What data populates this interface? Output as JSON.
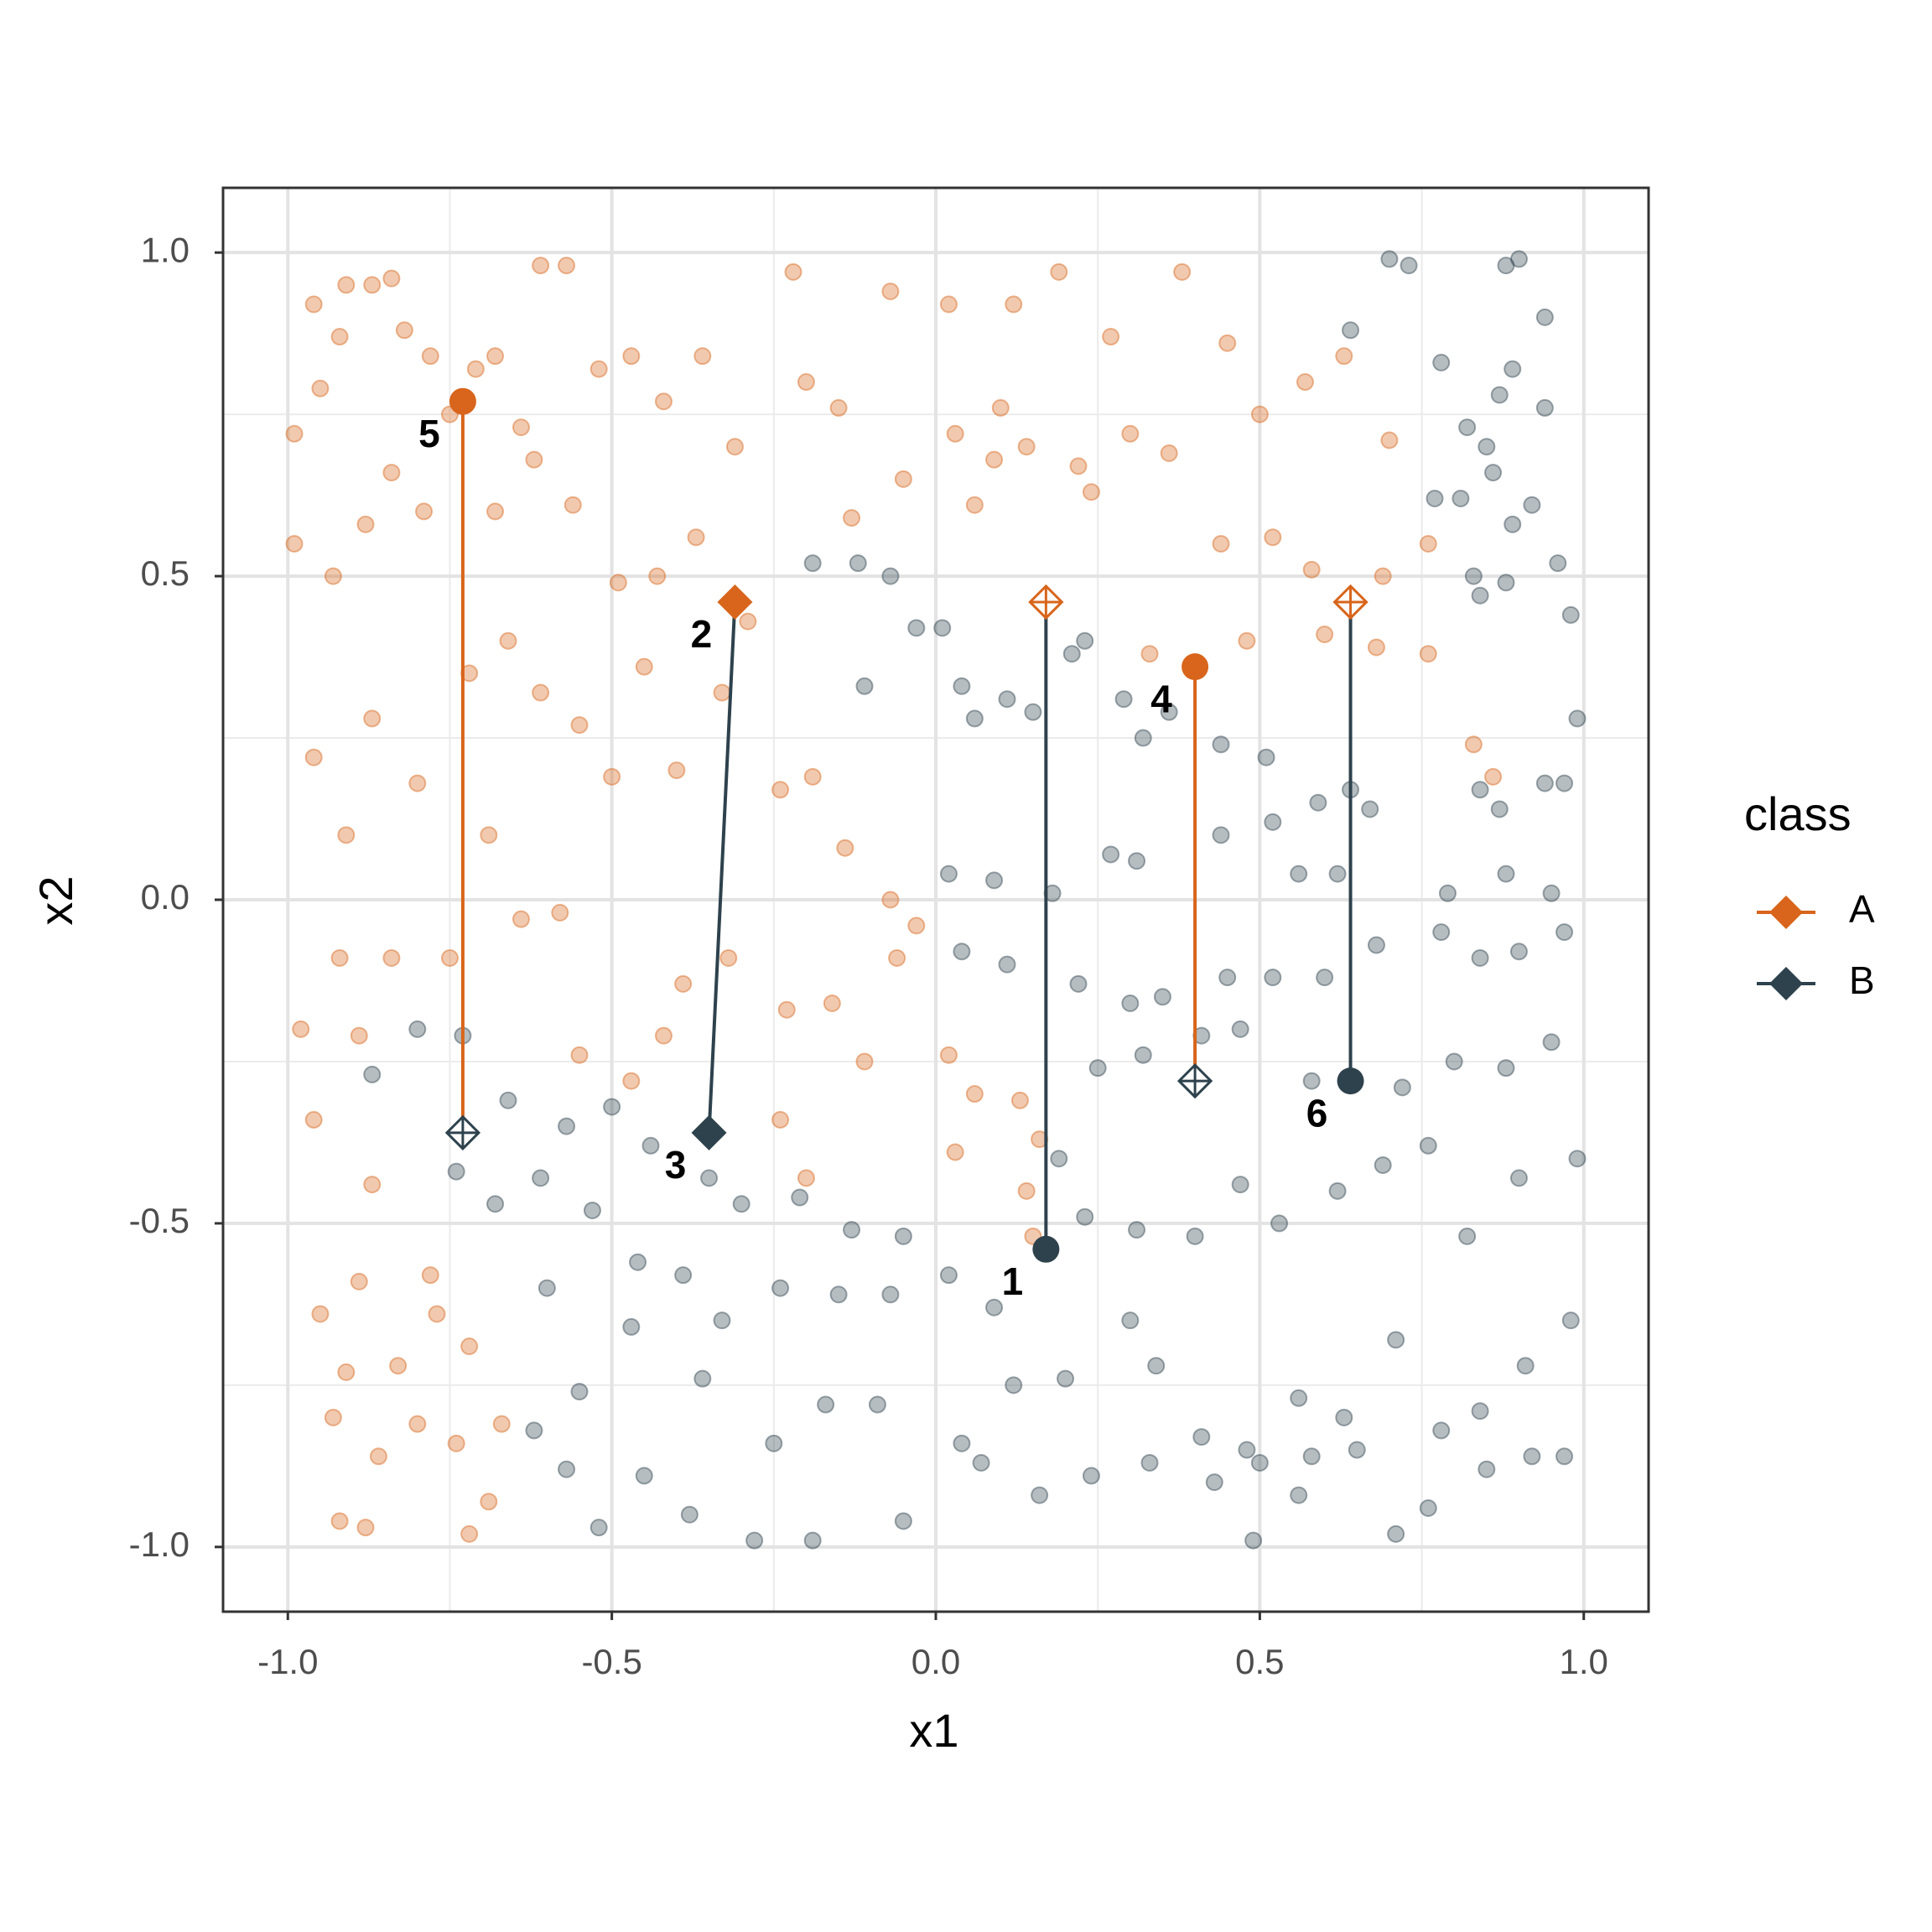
{
  "chart_data": {
    "type": "scatter",
    "x_label": "x1",
    "y_label": "x2",
    "legend_title": "class",
    "legend_position": "right",
    "grid": true,
    "xlim": [
      -1.1,
      1.1
    ],
    "ylim": [
      -1.1,
      1.1
    ],
    "xticks": [
      {
        "value": -1,
        "label": "-1.0"
      },
      {
        "value": -0.5,
        "label": "-0.5"
      },
      {
        "value": 0,
        "label": "0.0"
      },
      {
        "value": 0.5,
        "label": "0.5"
      },
      {
        "value": 1,
        "label": "1.0"
      }
    ],
    "yticks": [
      {
        "value": -1,
        "label": "-1.0"
      },
      {
        "value": -0.5,
        "label": "-0.5"
      },
      {
        "value": 0,
        "label": "0.0"
      },
      {
        "value": 0.5,
        "label": "0.5"
      },
      {
        "value": 1,
        "label": "1.0"
      }
    ],
    "minor_xticks": [
      -0.75,
      -0.25,
      0.25,
      0.75
    ],
    "minor_yticks": [
      -0.75,
      -0.25,
      0.25,
      0.75
    ],
    "series": [
      {
        "name": "A",
        "color": "#d8651b",
        "x": [
          -0.99,
          -0.99,
          -0.96,
          -0.95,
          -0.92,
          -0.91,
          -0.87,
          -0.84,
          -0.82,
          -0.78,
          -0.75,
          -0.71,
          -0.68,
          -0.64,
          -0.61,
          -0.57,
          -0.52,
          -0.47,
          -0.42,
          -0.36,
          -0.31,
          -0.22,
          -0.15,
          -0.07,
          0.02,
          0.12,
          0.19,
          0.27,
          0.38,
          0.45,
          0.5,
          0.57,
          0.63,
          0.7,
          -0.93,
          -0.88,
          -0.84,
          -0.79,
          -0.68,
          -0.62,
          -0.56,
          -0.49,
          -0.43,
          -0.37,
          -0.29,
          -0.2,
          -0.13,
          -0.05,
          0.03,
          0.09,
          0.14,
          0.22,
          0.3,
          0.36,
          0.44,
          0.52,
          0.58,
          0.69,
          0.76,
          -0.96,
          -0.91,
          -0.87,
          -0.8,
          -0.72,
          -0.66,
          -0.61,
          -0.55,
          -0.5,
          -0.45,
          -0.4,
          -0.33,
          -0.24,
          -0.19,
          -0.14,
          -0.07,
          -0.03,
          0.06,
          0.1,
          0.24,
          0.33,
          0.48,
          0.6,
          0.68,
          0.76,
          0.83,
          0.86,
          -0.98,
          -0.92,
          -0.89,
          -0.84,
          -0.75,
          -0.69,
          -0.64,
          -0.58,
          -0.55,
          -0.47,
          -0.42,
          -0.39,
          -0.32,
          -0.23,
          -0.16,
          -0.11,
          -0.06,
          0.02,
          0.06,
          0.13,
          0.16,
          0.14,
          0.15,
          -0.96,
          -0.95,
          -0.93,
          -0.91,
          -0.89,
          -0.87,
          -0.86,
          -0.83,
          -0.8,
          -0.77,
          -0.74,
          -0.72,
          -0.69,
          -0.67,
          -0.92,
          -0.88,
          -0.72,
          -0.78,
          -0.2,
          -0.24,
          0.03
        ],
        "values": [
          0.55,
          0.72,
          0.92,
          0.79,
          0.87,
          0.95,
          0.95,
          0.96,
          0.88,
          0.84,
          0.75,
          0.82,
          0.84,
          0.73,
          0.98,
          0.98,
          0.82,
          0.84,
          0.77,
          0.84,
          0.7,
          0.97,
          0.76,
          0.94,
          0.92,
          0.92,
          0.97,
          0.87,
          0.97,
          0.86,
          0.75,
          0.8,
          0.84,
          0.71,
          0.5,
          0.58,
          0.66,
          0.6,
          0.6,
          0.68,
          0.61,
          0.49,
          0.5,
          0.56,
          0.43,
          0.8,
          0.59,
          0.65,
          0.72,
          0.68,
          0.7,
          0.67,
          0.72,
          0.69,
          0.55,
          0.56,
          0.51,
          0.5,
          0.55,
          0.22,
          0.1,
          0.28,
          0.18,
          0.35,
          0.4,
          0.32,
          0.27,
          0.19,
          0.36,
          0.2,
          0.32,
          0.17,
          0.19,
          0.08,
          0.0,
          -0.04,
          0.61,
          0.76,
          0.63,
          0.38,
          0.4,
          0.41,
          0.39,
          0.38,
          0.24,
          0.19,
          -0.2,
          -0.09,
          -0.21,
          -0.09,
          -0.09,
          0.1,
          -0.03,
          -0.02,
          -0.24,
          -0.28,
          -0.21,
          -0.13,
          -0.09,
          -0.17,
          -0.16,
          -0.25,
          -0.09,
          -0.24,
          -0.3,
          -0.31,
          -0.37,
          -0.45,
          -0.52,
          -0.34,
          -0.64,
          -0.8,
          -0.73,
          -0.59,
          -0.44,
          -0.86,
          -0.72,
          -0.81,
          -0.64,
          -0.84,
          -0.69,
          -0.93,
          -0.81,
          -0.96,
          -0.97,
          -0.98,
          -0.58,
          -0.43,
          -0.34,
          -0.39
        ]
      },
      {
        "name": "B",
        "color": "#2e424d",
        "x": [
          0.7,
          0.73,
          0.88,
          0.9,
          0.64,
          0.78,
          0.89,
          0.94,
          0.94,
          0.87,
          0.82,
          0.85,
          0.86,
          0.77,
          0.81,
          0.89,
          0.92,
          0.96,
          0.98,
          0.83,
          0.88,
          0.84,
          -0.19,
          -0.12,
          -0.07,
          -0.11,
          -0.03,
          0.01,
          0.04,
          0.06,
          0.11,
          0.15,
          0.21,
          0.23,
          0.29,
          0.32,
          0.36,
          0.44,
          0.51,
          0.59,
          0.64,
          0.67,
          0.84,
          0.87,
          0.94,
          0.97,
          0.99,
          0.02,
          0.09,
          0.18,
          0.27,
          0.31,
          0.44,
          0.52,
          0.56,
          0.62,
          0.79,
          0.88,
          0.95,
          0.04,
          0.11,
          0.22,
          0.3,
          0.35,
          0.45,
          0.52,
          0.6,
          0.68,
          0.78,
          0.84,
          0.9,
          0.97,
          0.25,
          0.32,
          0.41,
          0.47,
          0.58,
          0.72,
          0.8,
          0.88,
          0.95,
          -0.87,
          -0.8,
          -0.73,
          -0.66,
          -0.57,
          -0.5,
          -0.44,
          -0.35,
          -0.3,
          -0.21,
          -0.13,
          -0.05,
          0.02,
          0.09,
          0.19,
          0.23,
          0.31,
          0.4,
          0.47,
          0.53,
          0.62,
          0.69,
          0.76,
          0.82,
          0.9,
          0.99,
          -0.74,
          -0.68,
          -0.61,
          -0.53,
          -0.46,
          -0.39,
          -0.33,
          -0.24,
          -0.15,
          -0.07,
          -0.6,
          -0.55,
          -0.47,
          -0.36,
          -0.25,
          -0.17,
          -0.09,
          0.04,
          0.12,
          0.2,
          0.3,
          0.34,
          0.41,
          0.48,
          0.56,
          0.63,
          0.71,
          0.78,
          0.84,
          0.91,
          0.98,
          -0.62,
          -0.57,
          -0.52,
          -0.45,
          -0.38,
          -0.28,
          -0.19,
          -0.05,
          0.07,
          0.16,
          0.24,
          0.33,
          0.43,
          0.5,
          0.58,
          0.65,
          0.71,
          0.76,
          0.85,
          0.92,
          0.97,
          0.49,
          0.56
        ],
        "values": [
          0.99,
          0.98,
          0.98,
          0.99,
          0.88,
          0.83,
          0.82,
          0.9,
          0.76,
          0.78,
          0.73,
          0.7,
          0.66,
          0.62,
          0.62,
          0.58,
          0.61,
          0.52,
          0.44,
          0.5,
          0.49,
          0.47,
          0.52,
          0.52,
          0.5,
          0.33,
          0.42,
          0.42,
          0.33,
          0.28,
          0.31,
          0.29,
          0.38,
          0.4,
          0.31,
          0.25,
          0.29,
          0.24,
          0.22,
          0.15,
          0.17,
          0.14,
          0.17,
          0.14,
          0.18,
          0.18,
          0.28,
          0.04,
          0.03,
          0.01,
          0.07,
          0.06,
          0.1,
          0.12,
          0.04,
          0.04,
          0.01,
          0.04,
          0.01,
          -0.08,
          -0.1,
          -0.13,
          -0.16,
          -0.15,
          -0.12,
          -0.12,
          -0.12,
          -0.07,
          -0.05,
          -0.09,
          -0.08,
          -0.05,
          -0.26,
          -0.24,
          -0.21,
          -0.2,
          -0.28,
          -0.29,
          -0.25,
          -0.26,
          -0.22,
          -0.27,
          -0.2,
          -0.21,
          -0.31,
          -0.35,
          -0.32,
          -0.38,
          -0.43,
          -0.47,
          -0.46,
          -0.51,
          -0.52,
          -0.58,
          -0.63,
          -0.4,
          -0.49,
          -0.51,
          -0.52,
          -0.44,
          -0.5,
          -0.45,
          -0.41,
          -0.38,
          -0.52,
          -0.43,
          -0.4,
          -0.42,
          -0.47,
          -0.43,
          -0.48,
          -0.56,
          -0.58,
          -0.65,
          -0.6,
          -0.61,
          -0.61,
          -0.6,
          -0.76,
          -0.66,
          -0.74,
          -0.84,
          -0.78,
          -0.78,
          -0.84,
          -0.75,
          -0.74,
          -0.65,
          -0.72,
          -0.83,
          -0.85,
          -0.77,
          -0.8,
          -0.68,
          -0.82,
          -0.79,
          -0.72,
          -0.65,
          -0.82,
          -0.88,
          -0.97,
          -0.89,
          -0.95,
          -0.99,
          -0.99,
          -0.96,
          -0.87,
          -0.92,
          -0.89,
          -0.87,
          -0.9,
          -0.87,
          -0.86,
          -0.85,
          -0.98,
          -0.94,
          -0.88,
          -0.86,
          -0.86,
          -0.99,
          -0.92
        ]
      }
    ],
    "links": [
      {
        "color": "#d8651b",
        "x": [
          -0.73,
          -0.73
        ],
        "y": [
          0.77,
          -0.36
        ]
      },
      {
        "color": "#2e424d",
        "x": [
          -0.31,
          -0.35
        ],
        "y": [
          0.46,
          -0.36
        ]
      },
      {
        "color": "#2e424d",
        "x": [
          0.17,
          0.17
        ],
        "y": [
          -0.54,
          0.46
        ]
      },
      {
        "color": "#d8651b",
        "x": [
          0.4,
          0.4
        ],
        "y": [
          0.36,
          -0.28
        ]
      },
      {
        "color": "#2e424d",
        "x": [
          0.64,
          0.64
        ],
        "y": [
          -0.28,
          0.46
        ]
      }
    ],
    "highlights": [
      {
        "label": "1",
        "x": 0.17,
        "y": -0.54,
        "color": "#2e424d",
        "shape": "circle"
      },
      {
        "label": "2",
        "x": -0.31,
        "y": 0.46,
        "color": "#d8651b",
        "shape": "diamond"
      },
      {
        "label": "3",
        "x": -0.35,
        "y": -0.36,
        "color": "#2e424d",
        "shape": "diamond"
      },
      {
        "label": "4",
        "x": 0.4,
        "y": 0.36,
        "color": "#d8651b",
        "shape": "circle"
      },
      {
        "label": "5",
        "x": -0.73,
        "y": 0.77,
        "color": "#d8651b",
        "shape": "circle"
      },
      {
        "label": "6",
        "x": 0.64,
        "y": -0.28,
        "color": "#2e424d",
        "shape": "circle"
      },
      {
        "x": 0.17,
        "y": 0.46,
        "color": "#d8651b",
        "shape": "diamond-cross"
      },
      {
        "x": -0.73,
        "y": -0.36,
        "color": "#2e424d",
        "shape": "diamond-cross"
      },
      {
        "x": 0.4,
        "y": -0.28,
        "color": "#2e424d",
        "shape": "diamond-cross"
      },
      {
        "x": 0.64,
        "y": 0.46,
        "color": "#d8651b",
        "shape": "diamond-cross"
      }
    ]
  }
}
